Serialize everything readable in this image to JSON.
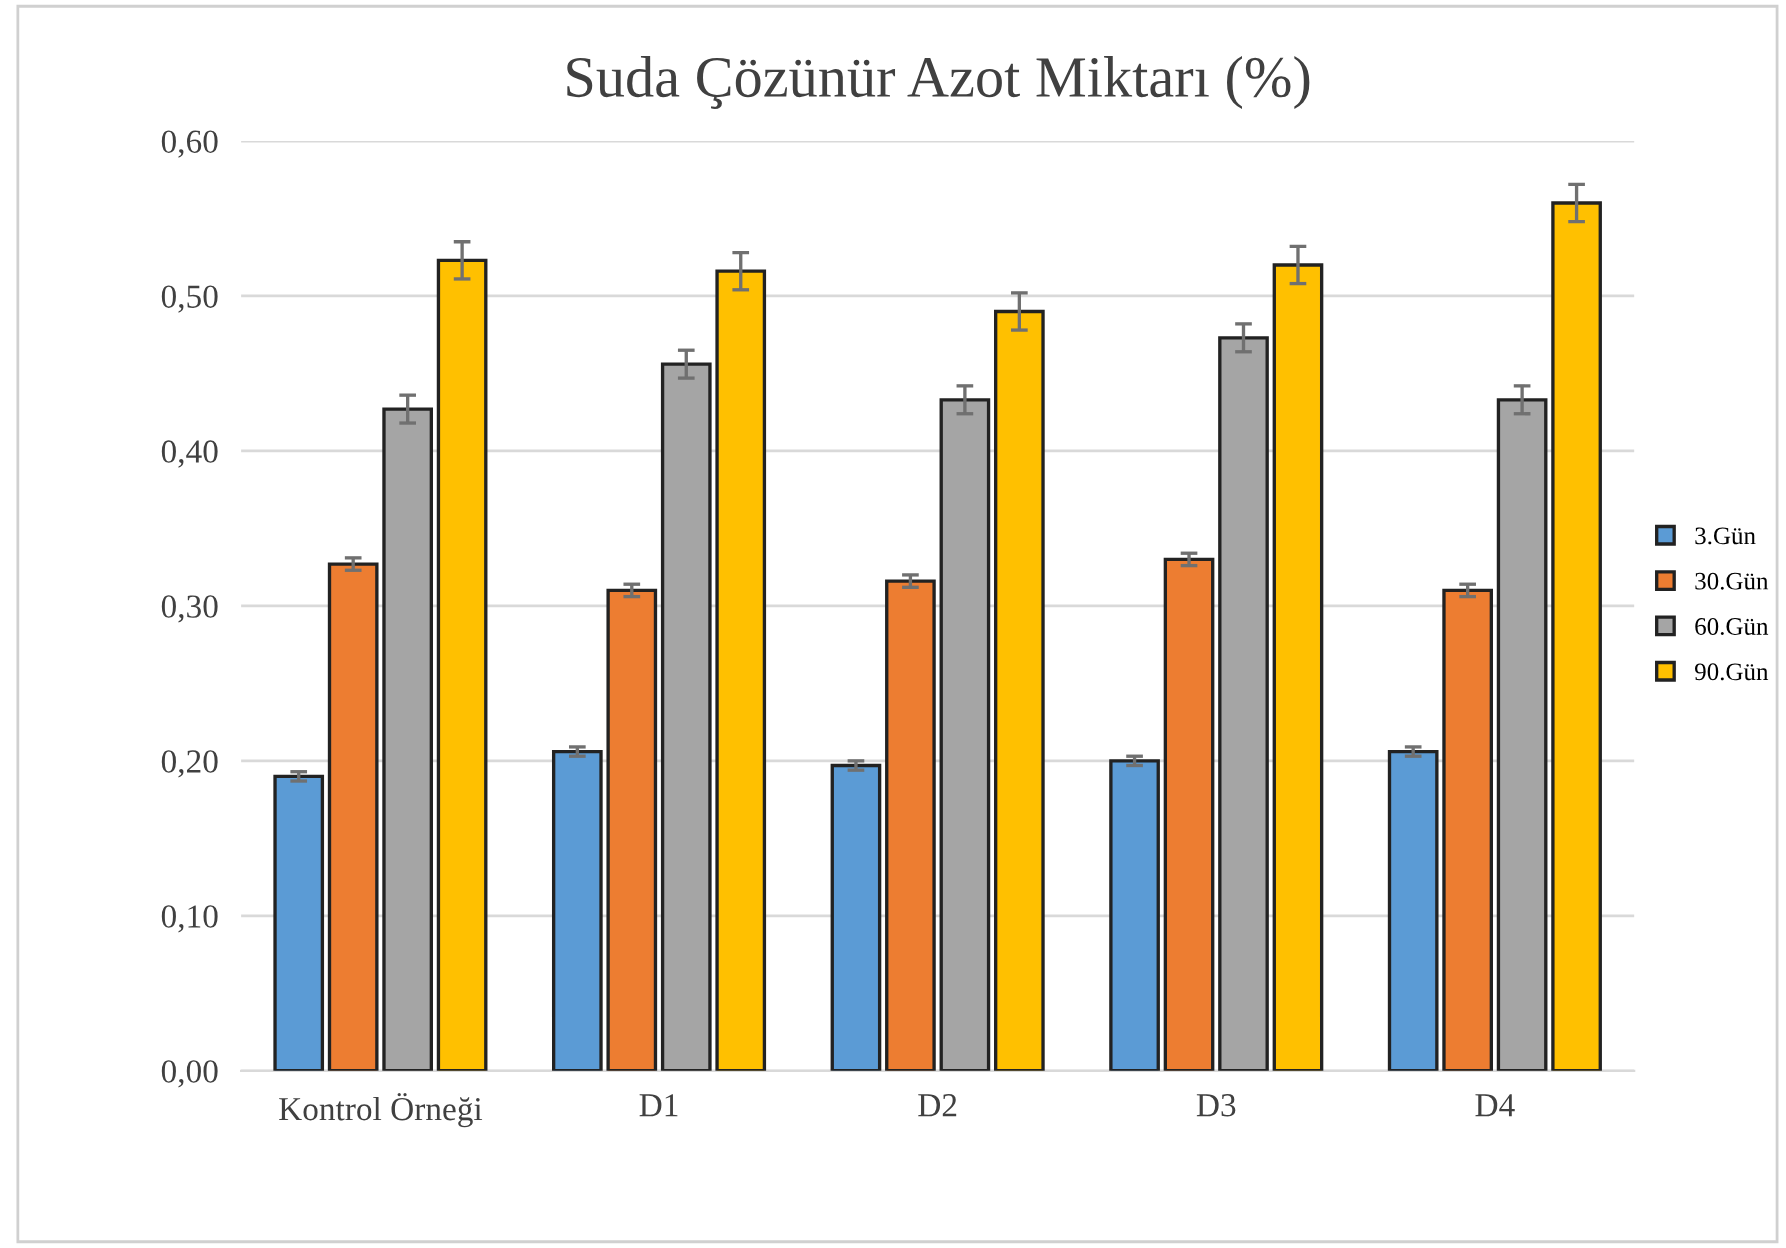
{
  "chart_data": {
    "type": "bar",
    "title": "Suda Çözünür Azot Miktarı (%)",
    "categories": [
      "Kontrol Örneği",
      "D1",
      "D2",
      "D3",
      "D4"
    ],
    "series": [
      {
        "name": "3.Gün",
        "color": "#5b9bd5",
        "values": [
          0.19,
          0.206,
          0.197,
          0.2,
          0.206
        ],
        "errors": [
          0.003,
          0.003,
          0.003,
          0.003,
          0.003
        ]
      },
      {
        "name": "30.Gün",
        "color": "#ed7d31",
        "values": [
          0.327,
          0.31,
          0.316,
          0.33,
          0.31
        ],
        "errors": [
          0.004,
          0.004,
          0.004,
          0.004,
          0.004
        ]
      },
      {
        "name": "60.Gün",
        "color": "#a5a5a5",
        "values": [
          0.427,
          0.456,
          0.433,
          0.473,
          0.433
        ],
        "errors": [
          0.009,
          0.009,
          0.009,
          0.009,
          0.009
        ]
      },
      {
        "name": "90.Gün",
        "color": "#ffc000",
        "values": [
          0.523,
          0.516,
          0.49,
          0.52,
          0.56
        ],
        "errors": [
          0.012,
          0.012,
          0.012,
          0.012,
          0.012
        ]
      }
    ],
    "ylim": [
      0,
      0.6
    ],
    "yticks": [
      {
        "value": 0,
        "label": "0,00"
      },
      {
        "value": 0.1,
        "label": "0,10"
      },
      {
        "value": 0.2,
        "label": "0,20"
      },
      {
        "value": 0.3,
        "label": "0,30"
      },
      {
        "value": 0.4,
        "label": "0,40"
      },
      {
        "value": 0.5,
        "label": "0,50"
      },
      {
        "value": 0.6,
        "label": "0,60"
      }
    ],
    "grid": "y",
    "legend": "right"
  }
}
